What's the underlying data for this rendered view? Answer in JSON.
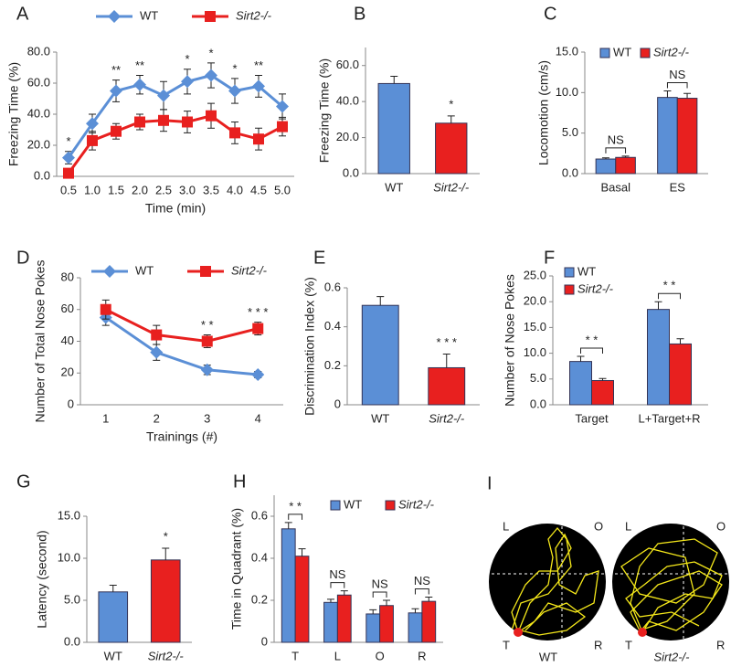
{
  "chart_data": [
    {
      "type": "line",
      "panel": "A",
      "ylabel": "Freezing Time (%)",
      "xlabel": "Time (min)",
      "categories": [
        "0.5",
        "1.0",
        "1.5",
        "2.0",
        "2.5",
        "3.0",
        "3.5",
        "4.0",
        "4.5",
        "5.0"
      ],
      "ylim": [
        0,
        80
      ],
      "yticks": [
        {
          "value": 0,
          "label": "0.0"
        },
        {
          "value": 20,
          "label": "20.0"
        },
        {
          "value": 40,
          "label": "40.0"
        },
        {
          "value": 60,
          "label": "60.0"
        },
        {
          "value": 80,
          "label": "80.0"
        }
      ],
      "legend": "upper center",
      "series": [
        {
          "name": "WT",
          "color": "#5b8fd6",
          "marker": "diamond",
          "values": [
            12,
            34,
            55,
            59,
            52,
            61,
            65,
            55,
            58,
            45
          ],
          "errors": [
            4,
            6,
            7,
            6,
            9,
            8,
            8,
            8,
            7,
            8
          ]
        },
        {
          "name": "Sirt2-/-",
          "color": "#e8201f",
          "marker": "square",
          "values": [
            2,
            23,
            29,
            35,
            36,
            35,
            39,
            28,
            24,
            32
          ],
          "errors": [
            2,
            6,
            5,
            5,
            7,
            7,
            8,
            7,
            7,
            6
          ]
        }
      ],
      "significance": [
        "*",
        null,
        "**",
        "**",
        null,
        "*",
        "*",
        "*",
        "**",
        null
      ]
    },
    {
      "type": "bar",
      "panel": "B",
      "ylabel": "Freezing Time (%)",
      "categories": [
        "WT",
        "Sirt2-/-"
      ],
      "values": [
        50,
        28
      ],
      "errors": [
        4,
        4
      ],
      "colors": [
        "#5b8fd6",
        "#e8201f"
      ],
      "ylim": [
        0,
        70
      ],
      "yticks": [
        {
          "value": 0,
          "label": "0.0"
        },
        {
          "value": 20,
          "label": "20.0"
        },
        {
          "value": 40,
          "label": "40.0"
        },
        {
          "value": 60,
          "label": "60.0"
        }
      ],
      "significance": [
        null,
        "*"
      ]
    },
    {
      "type": "grouped_bar",
      "panel": "C",
      "ylabel": "Locomotion (cm/s)",
      "categories": [
        "Basal",
        "ES"
      ],
      "ylim": [
        0,
        15
      ],
      "yticks": [
        {
          "value": 0,
          "label": "0.0"
        },
        {
          "value": 5,
          "label": "5.0"
        },
        {
          "value": 10,
          "label": "10.0"
        },
        {
          "value": 15,
          "label": "15.0"
        }
      ],
      "legend": "upper left",
      "series": [
        {
          "name": "WT",
          "color": "#5b8fd6",
          "values": [
            1.8,
            9.4
          ],
          "errors": [
            0.15,
            0.8
          ]
        },
        {
          "name": "Sirt2-/-",
          "color": "#e8201f",
          "values": [
            2.0,
            9.3
          ],
          "errors": [
            0.15,
            0.6
          ]
        }
      ],
      "brackets": [
        "NS",
        "NS"
      ]
    },
    {
      "type": "line",
      "panel": "D",
      "ylabel": "Number of Total Nose Pokes",
      "xlabel": "Trainings (#)",
      "categories": [
        "1",
        "2",
        "3",
        "4"
      ],
      "ylim": [
        0,
        80
      ],
      "yticks": [
        0,
        20,
        40,
        60,
        80
      ],
      "legend": "upper center",
      "series": [
        {
          "name": "WT",
          "color": "#5b8fd6",
          "marker": "diamond",
          "values": [
            55,
            33,
            22,
            19
          ],
          "errors": [
            5,
            5,
            3,
            2
          ]
        },
        {
          "name": "Sirt2-/-",
          "color": "#e8201f",
          "marker": "square",
          "values": [
            60,
            44,
            40,
            48
          ],
          "errors": [
            6,
            6,
            4,
            4
          ]
        }
      ],
      "significance": [
        null,
        null,
        "* *",
        "* * *"
      ]
    },
    {
      "type": "bar",
      "panel": "E",
      "ylabel": "Discrimination Index (%)",
      "categories": [
        "WT",
        "Sirt2-/-"
      ],
      "values": [
        0.51,
        0.19
      ],
      "errors": [
        0.045,
        0.07
      ],
      "colors": [
        "#5b8fd6",
        "#e8201f"
      ],
      "ylim": [
        0,
        0.6
      ],
      "yticks": [
        0,
        0.2,
        0.4,
        0.6
      ],
      "significance": [
        null,
        "* * *"
      ]
    },
    {
      "type": "grouped_bar",
      "panel": "F",
      "ylabel": "Number of Nose Pokes",
      "categories": [
        "Target",
        "L+Target+R"
      ],
      "ylim": [
        0,
        25
      ],
      "yticks": [
        {
          "value": 0,
          "label": "0.0"
        },
        {
          "value": 5,
          "label": "5.0"
        },
        {
          "value": 10,
          "label": "10.0"
        },
        {
          "value": 15,
          "label": "15.0"
        },
        {
          "value": 20,
          "label": "20.0"
        },
        {
          "value": 25,
          "label": "25.0"
        }
      ],
      "legend": "upper left",
      "series": [
        {
          "name": "WT",
          "color": "#5b8fd6",
          "values": [
            8.4,
            18.5
          ],
          "errors": [
            1.0,
            1.5
          ]
        },
        {
          "name": "Sirt2-/-",
          "color": "#e8201f",
          "values": [
            4.7,
            11.8
          ],
          "errors": [
            0.4,
            1.0
          ]
        }
      ],
      "brackets": [
        "* *",
        "* *"
      ]
    },
    {
      "type": "bar",
      "panel": "G",
      "ylabel": "Latency (second)",
      "categories": [
        "WT",
        "Sirt2-/-"
      ],
      "values": [
        6.0,
        9.8
      ],
      "errors": [
        0.8,
        1.4
      ],
      "colors": [
        "#5b8fd6",
        "#e8201f"
      ],
      "ylim": [
        0,
        15
      ],
      "yticks": [
        {
          "value": 0,
          "label": "0.0"
        },
        {
          "value": 5,
          "label": "5.0"
        },
        {
          "value": 10,
          "label": "10.0"
        },
        {
          "value": 15,
          "label": "15.0"
        }
      ],
      "significance": [
        null,
        "*"
      ]
    },
    {
      "type": "grouped_bar",
      "panel": "H",
      "ylabel": "Time in Quadrant (%)",
      "categories": [
        "T",
        "L",
        "O",
        "R"
      ],
      "ylim": [
        0,
        0.7
      ],
      "yticks": [
        0,
        0.2,
        0.4,
        0.6
      ],
      "legend": "upper center",
      "series": [
        {
          "name": "WT",
          "color": "#5b8fd6",
          "values": [
            0.54,
            0.19,
            0.135,
            0.14
          ],
          "errors": [
            0.03,
            0.015,
            0.02,
            0.02
          ]
        },
        {
          "name": "Sirt2-/-",
          "color": "#e8201f",
          "values": [
            0.41,
            0.225,
            0.175,
            0.195
          ],
          "errors": [
            0.035,
            0.02,
            0.025,
            0.02
          ]
        }
      ],
      "brackets": [
        "* *",
        "NS",
        "NS",
        "NS"
      ]
    }
  ],
  "track_panel": {
    "panel": "I",
    "quadrants": [
      "L",
      "O",
      "T",
      "R"
    ],
    "groups": [
      "WT",
      "Sirt2-/-"
    ]
  }
}
